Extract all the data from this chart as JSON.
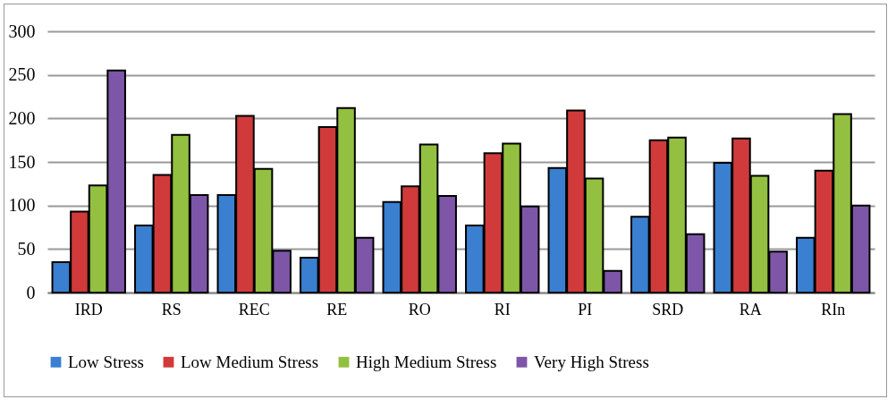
{
  "chart_data": {
    "type": "bar",
    "categories": [
      "IRD",
      "RS",
      "REC",
      "RE",
      "RO",
      "RI",
      "PI",
      "SRD",
      "RA",
      "RIn"
    ],
    "series": [
      {
        "name": "Low Stress",
        "color": "#3a7fd0",
        "values": [
          35,
          77,
          112,
          40,
          104,
          77,
          143,
          87,
          149,
          63
        ]
      },
      {
        "name": "Low Medium Stress",
        "color": "#d03a3a",
        "values": [
          93,
          135,
          203,
          190,
          122,
          160,
          209,
          175,
          177,
          140
        ]
      },
      {
        "name": "High Medium Stress",
        "color": "#93c040",
        "values": [
          123,
          181,
          142,
          212,
          170,
          171,
          131,
          178,
          134,
          205
        ]
      },
      {
        "name": "Very High Stress",
        "color": "#7d56a8",
        "values": [
          255,
          112,
          48,
          63,
          111,
          99,
          25,
          67,
          47,
          100
        ]
      }
    ],
    "ylim": [
      0,
      300
    ],
    "yticks": [
      0,
      50,
      100,
      150,
      200,
      250,
      300
    ],
    "grid": "y",
    "legend": "bottom"
  }
}
